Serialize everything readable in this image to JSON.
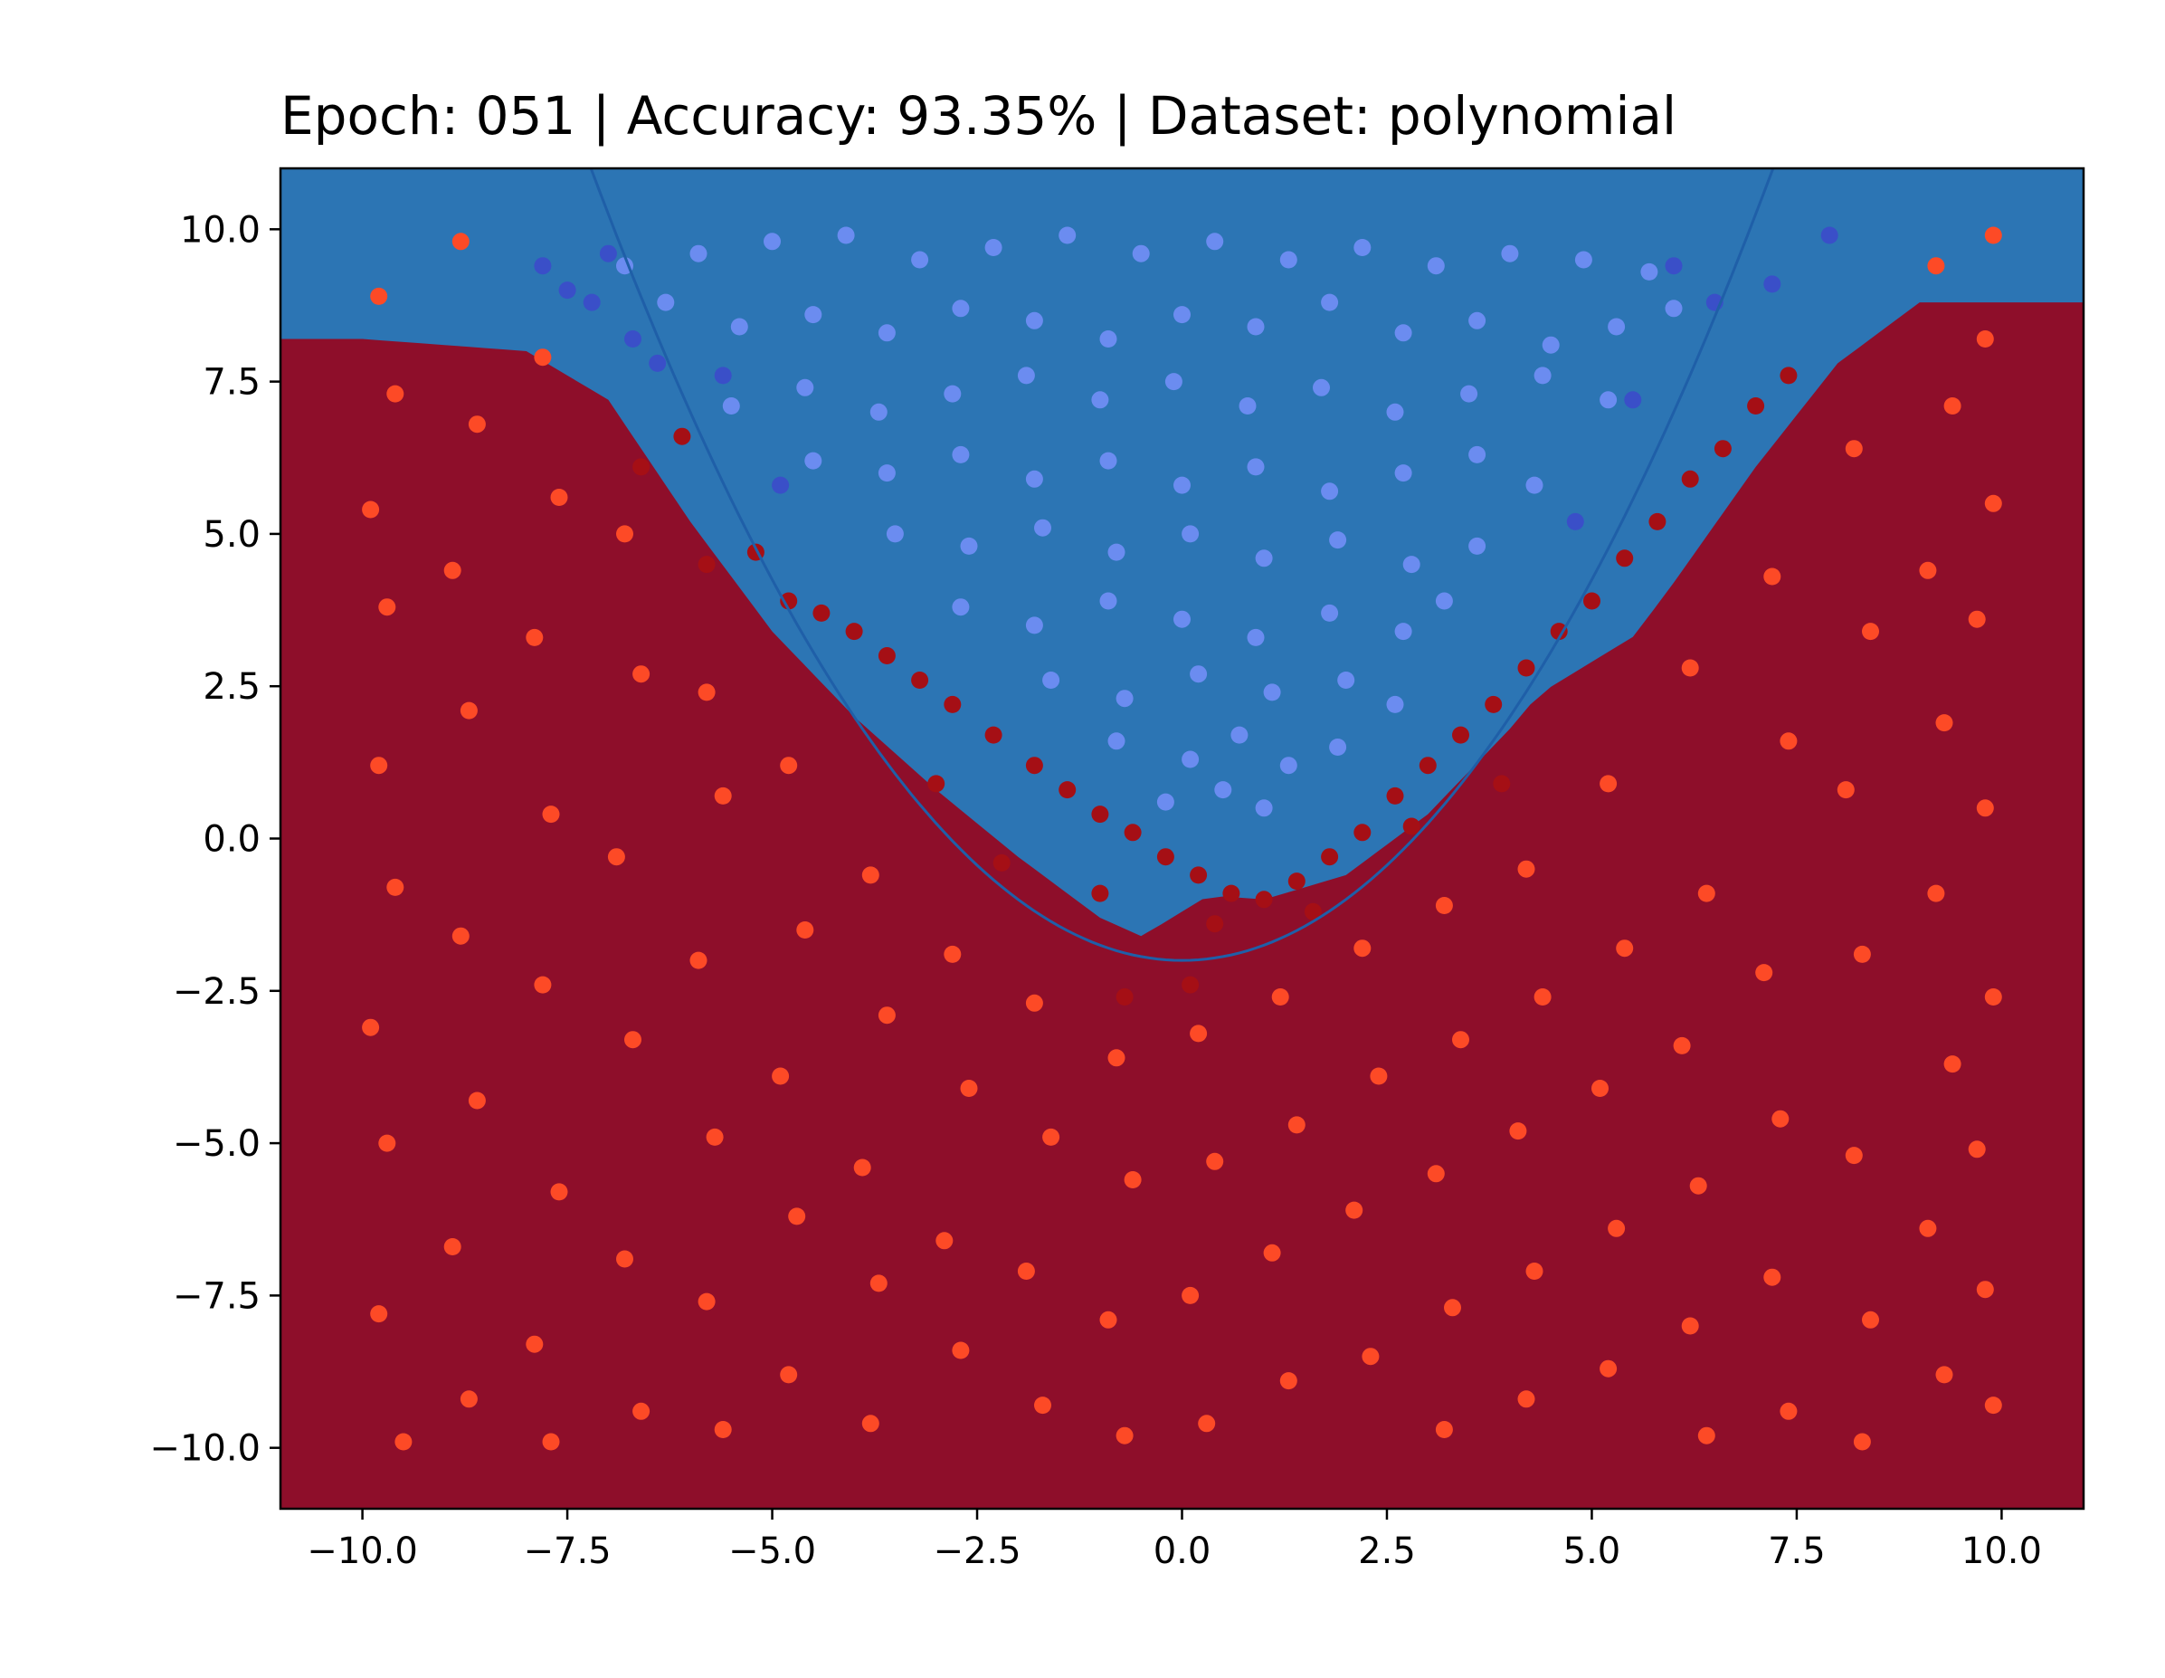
{
  "chart_data": {
    "type": "scatter",
    "title": "Epoch: 051 | Accuracy: 93.35% | Dataset: polynomial",
    "xlabel": "",
    "ylabel": "",
    "xlim": [
      -11,
      11
    ],
    "ylim": [
      -11,
      11
    ],
    "x_ticks": [
      -10.0,
      -7.5,
      -5.0,
      -2.5,
      0.0,
      2.5,
      5.0,
      7.5,
      10.0
    ],
    "x_tick_labels": [
      "−10.0",
      "−7.5",
      "−5.0",
      "−2.5",
      "0.0",
      "2.5",
      "5.0",
      "7.5",
      "10.0"
    ],
    "y_ticks": [
      10.0,
      7.5,
      5.0,
      2.5,
      0.0,
      -2.5,
      -5.0,
      -7.5,
      -10.0
    ],
    "y_tick_labels": [
      "10.0",
      "7.5",
      "5.0",
      "2.5",
      "0.0",
      "−2.5",
      "−5.0",
      "−7.5",
      "−10.0"
    ],
    "grid": false,
    "true_boundary": {
      "equation": "y = 0.25*x^2 - 2",
      "color": "#1f5fa8"
    },
    "decision_regions": [
      {
        "name": "class-1 high",
        "color": "#2c75b4"
      },
      {
        "name": "class-1 medium",
        "color": "#6aaad4"
      },
      {
        "name": "class-1 low",
        "color": "#c3dcec"
      },
      {
        "name": "class-0 low",
        "color": "#f3a582"
      },
      {
        "name": "class-0 medium",
        "color": "#d1554a"
      },
      {
        "name": "class-0 high",
        "color": "#8e0e2a"
      }
    ],
    "decision_boundary_samples": [
      {
        "x": -10.0,
        "y": 10.4
      },
      {
        "x": -8.0,
        "y": 10.2
      },
      {
        "x": -7.0,
        "y": 9.4
      },
      {
        "x": -6.0,
        "y": 7.4
      },
      {
        "x": -5.0,
        "y": 5.6
      },
      {
        "x": -4.0,
        "y": 4.2
      },
      {
        "x": -3.0,
        "y": 3.0
      },
      {
        "x": -2.0,
        "y": 1.9
      },
      {
        "x": -1.0,
        "y": 0.9
      },
      {
        "x": 0.0,
        "y": 0.3
      },
      {
        "x": 1.0,
        "y": 0.2
      },
      {
        "x": 2.0,
        "y": 0.6
      },
      {
        "x": 3.0,
        "y": 1.6
      },
      {
        "x": 4.0,
        "y": 3.0
      },
      {
        "x": 5.0,
        "y": 4.6
      },
      {
        "x": 6.0,
        "y": 6.4
      },
      {
        "x": 7.0,
        "y": 8.3
      },
      {
        "x": 8.0,
        "y": 10.0
      },
      {
        "x": 9.0,
        "y": 11.0
      }
    ],
    "series": [
      {
        "name": "class 1 correct",
        "color": "#6b8cf0",
        "points": [
          [
            -6.8,
            9.4
          ],
          [
            -5.9,
            9.6
          ],
          [
            -5.0,
            9.8
          ],
          [
            -4.1,
            9.9
          ],
          [
            -3.2,
            9.5
          ],
          [
            -2.3,
            9.7
          ],
          [
            -1.4,
            9.9
          ],
          [
            -0.5,
            9.6
          ],
          [
            0.4,
            9.8
          ],
          [
            1.3,
            9.5
          ],
          [
            2.2,
            9.7
          ],
          [
            3.1,
            9.4
          ],
          [
            4.0,
            9.6
          ],
          [
            4.9,
            9.5
          ],
          [
            5.7,
            9.3
          ],
          [
            -6.3,
            8.8
          ],
          [
            -5.4,
            8.4
          ],
          [
            -4.5,
            8.6
          ],
          [
            -3.6,
            8.3
          ],
          [
            -2.7,
            8.7
          ],
          [
            -1.8,
            8.5
          ],
          [
            -0.9,
            8.2
          ],
          [
            0.0,
            8.6
          ],
          [
            0.9,
            8.4
          ],
          [
            1.8,
            8.8
          ],
          [
            2.7,
            8.3
          ],
          [
            3.6,
            8.5
          ],
          [
            4.5,
            8.1
          ],
          [
            5.3,
            8.4
          ],
          [
            6.0,
            8.7
          ],
          [
            -5.5,
            7.1
          ],
          [
            -4.6,
            7.4
          ],
          [
            -3.7,
            7.0
          ],
          [
            -2.8,
            7.3
          ],
          [
            -1.9,
            7.6
          ],
          [
            -1.0,
            7.2
          ],
          [
            -0.1,
            7.5
          ],
          [
            0.8,
            7.1
          ],
          [
            1.7,
            7.4
          ],
          [
            2.6,
            7.0
          ],
          [
            3.5,
            7.3
          ],
          [
            4.4,
            7.6
          ],
          [
            5.2,
            7.2
          ],
          [
            -4.5,
            6.2
          ],
          [
            -3.6,
            6.0
          ],
          [
            -2.7,
            6.3
          ],
          [
            -1.8,
            5.9
          ],
          [
            -0.9,
            6.2
          ],
          [
            0.0,
            5.8
          ],
          [
            0.9,
            6.1
          ],
          [
            1.8,
            5.7
          ],
          [
            2.7,
            6.0
          ],
          [
            3.6,
            6.3
          ],
          [
            4.3,
            5.8
          ],
          [
            -3.5,
            5.0
          ],
          [
            -2.6,
            4.8
          ],
          [
            -1.7,
            5.1
          ],
          [
            -0.8,
            4.7
          ],
          [
            0.1,
            5.0
          ],
          [
            1.0,
            4.6
          ],
          [
            1.9,
            4.9
          ],
          [
            2.8,
            4.5
          ],
          [
            3.6,
            4.8
          ],
          [
            -2.7,
            3.8
          ],
          [
            -1.8,
            3.5
          ],
          [
            -0.9,
            3.9
          ],
          [
            0.0,
            3.6
          ],
          [
            0.9,
            3.3
          ],
          [
            1.8,
            3.7
          ],
          [
            2.7,
            3.4
          ],
          [
            3.2,
            3.9
          ],
          [
            -1.6,
            2.6
          ],
          [
            -0.7,
            2.3
          ],
          [
            0.2,
            2.7
          ],
          [
            1.1,
            2.4
          ],
          [
            2.0,
            2.6
          ],
          [
            2.6,
            2.2
          ],
          [
            -0.8,
            1.6
          ],
          [
            0.1,
            1.3
          ],
          [
            0.7,
            1.7
          ],
          [
            1.3,
            1.2
          ],
          [
            1.9,
            1.5
          ],
          [
            -0.2,
            0.6
          ],
          [
            0.5,
            0.8
          ],
          [
            1.0,
            0.5
          ]
        ]
      },
      {
        "name": "class 1 misclassified",
        "color": "#3a4fc8",
        "points": [
          [
            -7.8,
            9.4
          ],
          [
            -7.5,
            9.0
          ],
          [
            -7.2,
            8.8
          ],
          [
            -7.0,
            9.6
          ],
          [
            -6.7,
            8.2
          ],
          [
            -6.4,
            7.8
          ],
          [
            -5.6,
            7.6
          ],
          [
            -4.9,
            5.8
          ],
          [
            6.0,
            9.4
          ],
          [
            6.5,
            8.8
          ],
          [
            7.2,
            9.1
          ],
          [
            7.9,
            9.9
          ],
          [
            5.5,
            7.2
          ],
          [
            4.8,
            5.2
          ]
        ]
      },
      {
        "name": "class 0 near boundary",
        "color": "#a50f15",
        "points": [
          [
            -6.6,
            6.1
          ],
          [
            -6.1,
            6.6
          ],
          [
            -5.8,
            4.5
          ],
          [
            -5.2,
            4.7
          ],
          [
            -4.8,
            3.9
          ],
          [
            -4.4,
            3.7
          ],
          [
            -4.0,
            3.4
          ],
          [
            -3.6,
            3.0
          ],
          [
            -3.2,
            2.6
          ],
          [
            -2.8,
            2.2
          ],
          [
            -2.3,
            1.7
          ],
          [
            -1.8,
            1.2
          ],
          [
            -1.4,
            0.8
          ],
          [
            -1.0,
            0.4
          ],
          [
            -0.6,
            0.1
          ],
          [
            -0.2,
            -0.3
          ],
          [
            0.2,
            -0.6
          ],
          [
            0.6,
            -0.9
          ],
          [
            1.0,
            -1.0
          ],
          [
            1.4,
            -0.7
          ],
          [
            1.8,
            -0.3
          ],
          [
            2.2,
            0.1
          ],
          [
            2.6,
            0.7
          ],
          [
            3.0,
            1.2
          ],
          [
            3.4,
            1.7
          ],
          [
            3.8,
            2.2
          ],
          [
            4.2,
            2.8
          ],
          [
            4.6,
            3.4
          ],
          [
            5.0,
            3.9
          ],
          [
            5.4,
            4.6
          ],
          [
            5.8,
            5.2
          ],
          [
            6.2,
            5.9
          ],
          [
            6.6,
            6.4
          ],
          [
            7.0,
            7.1
          ],
          [
            7.4,
            7.6
          ],
          [
            -3.0,
            0.9
          ],
          [
            -2.2,
            -0.4
          ],
          [
            -1.0,
            -0.9
          ],
          [
            0.4,
            -1.4
          ],
          [
            1.6,
            -1.2
          ],
          [
            2.8,
            0.2
          ],
          [
            3.9,
            0.9
          ],
          [
            -0.7,
            -2.6
          ],
          [
            0.1,
            -2.4
          ]
        ]
      },
      {
        "name": "class 0 correct",
        "color": "#fd4a26",
        "points": [
          [
            -9.8,
            8.9
          ],
          [
            -9.6,
            7.3
          ],
          [
            -9.9,
            5.4
          ],
          [
            -9.7,
            3.8
          ],
          [
            -9.8,
            1.2
          ],
          [
            -9.6,
            -0.8
          ],
          [
            -9.9,
            -3.1
          ],
          [
            -9.7,
            -5.0
          ],
          [
            -9.8,
            -7.8
          ],
          [
            -9.5,
            -9.9
          ],
          [
            -8.8,
            9.8
          ],
          [
            -8.6,
            6.8
          ],
          [
            -8.9,
            4.4
          ],
          [
            -8.7,
            2.1
          ],
          [
            -8.8,
            -1.6
          ],
          [
            -8.6,
            -4.3
          ],
          [
            -8.9,
            -6.7
          ],
          [
            -8.7,
            -9.2
          ],
          [
            -7.8,
            7.9
          ],
          [
            -7.6,
            5.6
          ],
          [
            -7.9,
            3.3
          ],
          [
            -7.7,
            0.4
          ],
          [
            -7.8,
            -2.4
          ],
          [
            -7.6,
            -5.8
          ],
          [
            -7.9,
            -8.3
          ],
          [
            -7.7,
            -9.9
          ],
          [
            -6.8,
            5.0
          ],
          [
            -6.6,
            2.7
          ],
          [
            -6.9,
            -0.3
          ],
          [
            -6.7,
            -3.3
          ],
          [
            -6.8,
            -6.9
          ],
          [
            -6.6,
            -9.4
          ],
          [
            -5.8,
            2.4
          ],
          [
            -5.6,
            0.7
          ],
          [
            -5.9,
            -2.0
          ],
          [
            -5.7,
            -4.9
          ],
          [
            -5.8,
            -7.6
          ],
          [
            -5.6,
            -9.7
          ],
          [
            -4.8,
            1.2
          ],
          [
            -4.6,
            -1.5
          ],
          [
            -4.9,
            -3.9
          ],
          [
            -4.7,
            -6.2
          ],
          [
            -4.8,
            -8.8
          ],
          [
            -3.8,
            -0.6
          ],
          [
            -3.6,
            -2.9
          ],
          [
            -3.9,
            -5.4
          ],
          [
            -3.7,
            -7.3
          ],
          [
            -3.8,
            -9.6
          ],
          [
            -2.8,
            -1.9
          ],
          [
            -2.6,
            -4.1
          ],
          [
            -2.9,
            -6.6
          ],
          [
            -2.7,
            -8.4
          ],
          [
            -1.8,
            -2.7
          ],
          [
            -1.6,
            -4.9
          ],
          [
            -1.9,
            -7.1
          ],
          [
            -1.7,
            -9.3
          ],
          [
            -0.8,
            -3.6
          ],
          [
            -0.6,
            -5.6
          ],
          [
            -0.9,
            -7.9
          ],
          [
            -0.7,
            -9.8
          ],
          [
            0.2,
            -3.2
          ],
          [
            0.4,
            -5.3
          ],
          [
            0.1,
            -7.5
          ],
          [
            0.3,
            -9.6
          ],
          [
            1.2,
            -2.6
          ],
          [
            1.4,
            -4.7
          ],
          [
            1.1,
            -6.8
          ],
          [
            1.3,
            -8.9
          ],
          [
            2.2,
            -1.8
          ],
          [
            2.4,
            -3.9
          ],
          [
            2.1,
            -6.1
          ],
          [
            2.3,
            -8.5
          ],
          [
            3.2,
            -1.1
          ],
          [
            3.4,
            -3.3
          ],
          [
            3.1,
            -5.5
          ],
          [
            3.3,
            -7.7
          ],
          [
            3.2,
            -9.7
          ],
          [
            4.2,
            -0.5
          ],
          [
            4.4,
            -2.6
          ],
          [
            4.1,
            -4.8
          ],
          [
            4.3,
            -7.1
          ],
          [
            4.2,
            -9.2
          ],
          [
            5.2,
            0.9
          ],
          [
            5.4,
            -1.8
          ],
          [
            5.1,
            -4.1
          ],
          [
            5.3,
            -6.4
          ],
          [
            5.2,
            -8.7
          ],
          [
            6.2,
            2.8
          ],
          [
            6.4,
            -0.9
          ],
          [
            6.1,
            -3.4
          ],
          [
            6.3,
            -5.7
          ],
          [
            6.2,
            -8.0
          ],
          [
            6.4,
            -9.8
          ],
          [
            7.2,
            4.3
          ],
          [
            7.4,
            1.6
          ],
          [
            7.1,
            -2.2
          ],
          [
            7.3,
            -4.6
          ],
          [
            7.2,
            -7.2
          ],
          [
            7.4,
            -9.4
          ],
          [
            8.2,
            6.4
          ],
          [
            8.4,
            3.4
          ],
          [
            8.1,
            0.8
          ],
          [
            8.3,
            -1.9
          ],
          [
            8.2,
            -5.2
          ],
          [
            8.4,
            -7.9
          ],
          [
            8.3,
            -9.9
          ],
          [
            9.2,
            9.4
          ],
          [
            9.4,
            7.1
          ],
          [
            9.1,
            4.4
          ],
          [
            9.3,
            1.9
          ],
          [
            9.2,
            -0.9
          ],
          [
            9.4,
            -3.7
          ],
          [
            9.1,
            -6.4
          ],
          [
            9.3,
            -8.8
          ],
          [
            9.9,
            9.9
          ],
          [
            9.8,
            8.2
          ],
          [
            9.9,
            5.5
          ],
          [
            9.7,
            3.6
          ],
          [
            9.8,
            0.5
          ],
          [
            9.9,
            -2.6
          ],
          [
            9.7,
            -5.1
          ],
          [
            9.8,
            -7.4
          ],
          [
            9.9,
            -9.3
          ]
        ]
      }
    ]
  }
}
